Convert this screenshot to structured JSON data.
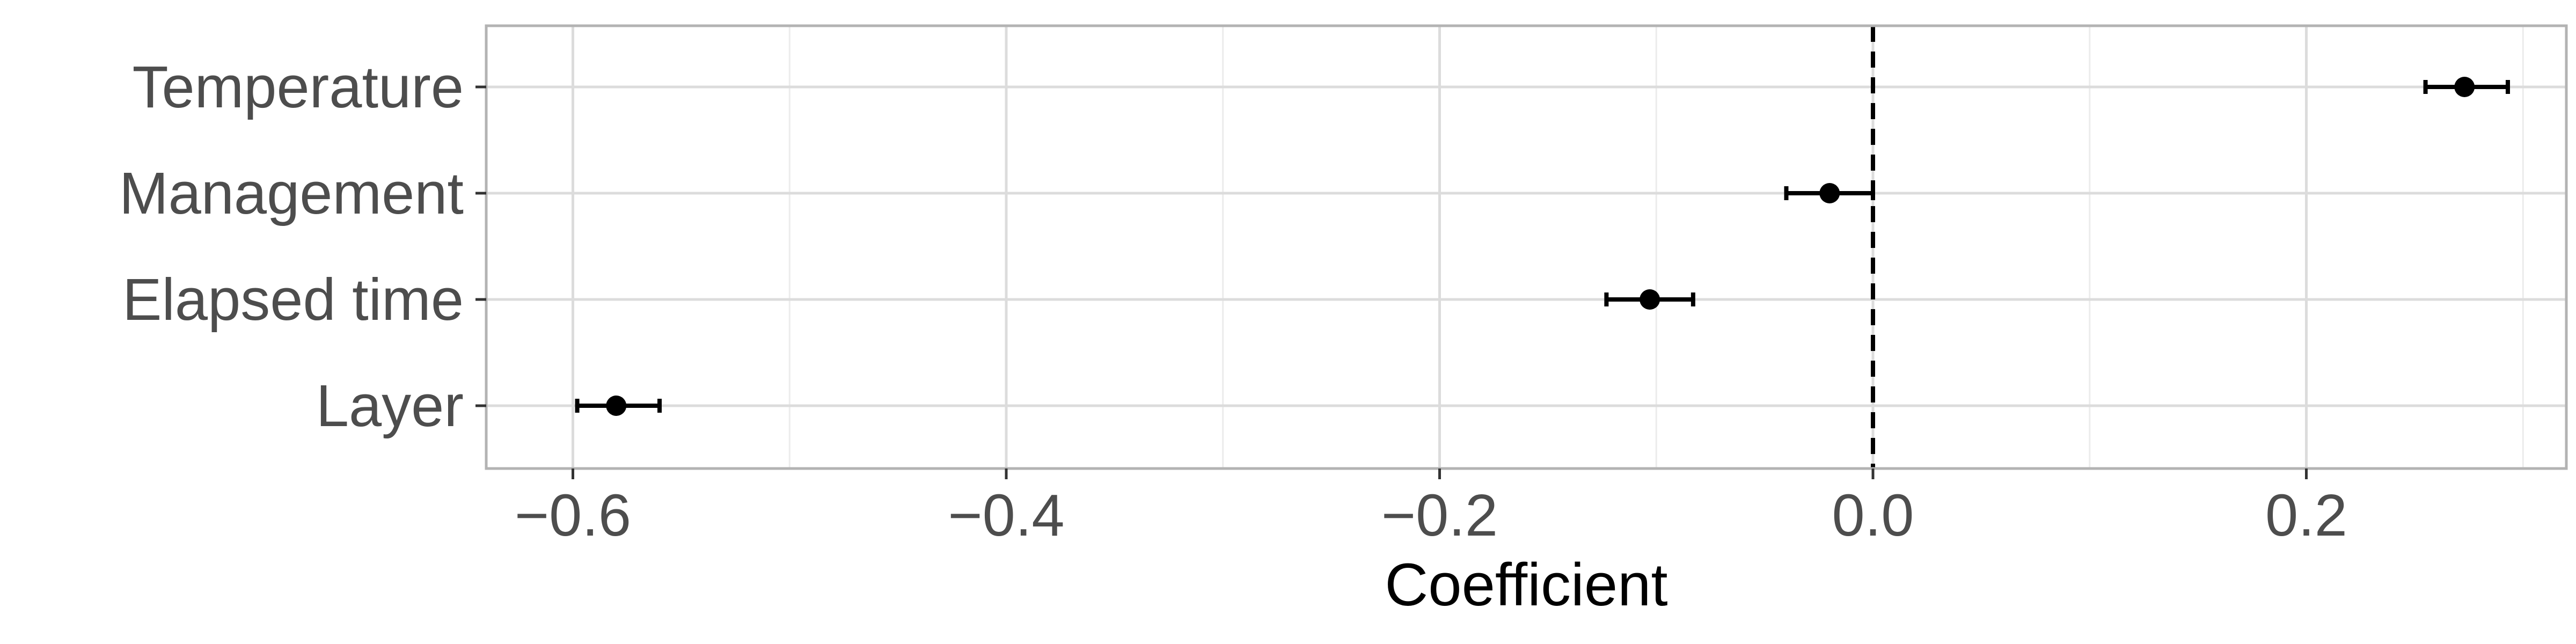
{
  "chart_data": {
    "type": "scatter",
    "subtype": "coefficient-plot-with-error-bars",
    "title": "",
    "xlabel": "Coefficient",
    "ylabel": "",
    "xlim": [
      -0.64,
      0.32
    ],
    "x_ticks": [
      -0.6,
      -0.4,
      -0.2,
      0.0,
      0.2
    ],
    "x_tick_labels": [
      "−0.6",
      "−0.4",
      "−0.2",
      "0.0",
      "0.2"
    ],
    "categories": [
      "Temperature",
      "Management",
      "Elapsed time",
      "Layer"
    ],
    "points": [
      {
        "label": "Temperature",
        "estimate": 0.273,
        "lower": 0.255,
        "upper": 0.293
      },
      {
        "label": "Management",
        "estimate": -0.02,
        "lower": -0.04,
        "upper": 0.0
      },
      {
        "label": "Elapsed time",
        "estimate": -0.103,
        "lower": -0.123,
        "upper": -0.083
      },
      {
        "label": "Layer",
        "estimate": -0.58,
        "lower": -0.598,
        "upper": -0.56
      }
    ],
    "reference_line": {
      "x": 0.0,
      "style": "dashed"
    },
    "grid": true,
    "legend": "none"
  },
  "colors": {
    "panel_border": "#b3b3b3",
    "grid_major": "#dcdcdc",
    "grid_minor": "#ececec",
    "point": "#000000",
    "tick_text": "#4d4d4d",
    "axis_title": "#000000"
  }
}
